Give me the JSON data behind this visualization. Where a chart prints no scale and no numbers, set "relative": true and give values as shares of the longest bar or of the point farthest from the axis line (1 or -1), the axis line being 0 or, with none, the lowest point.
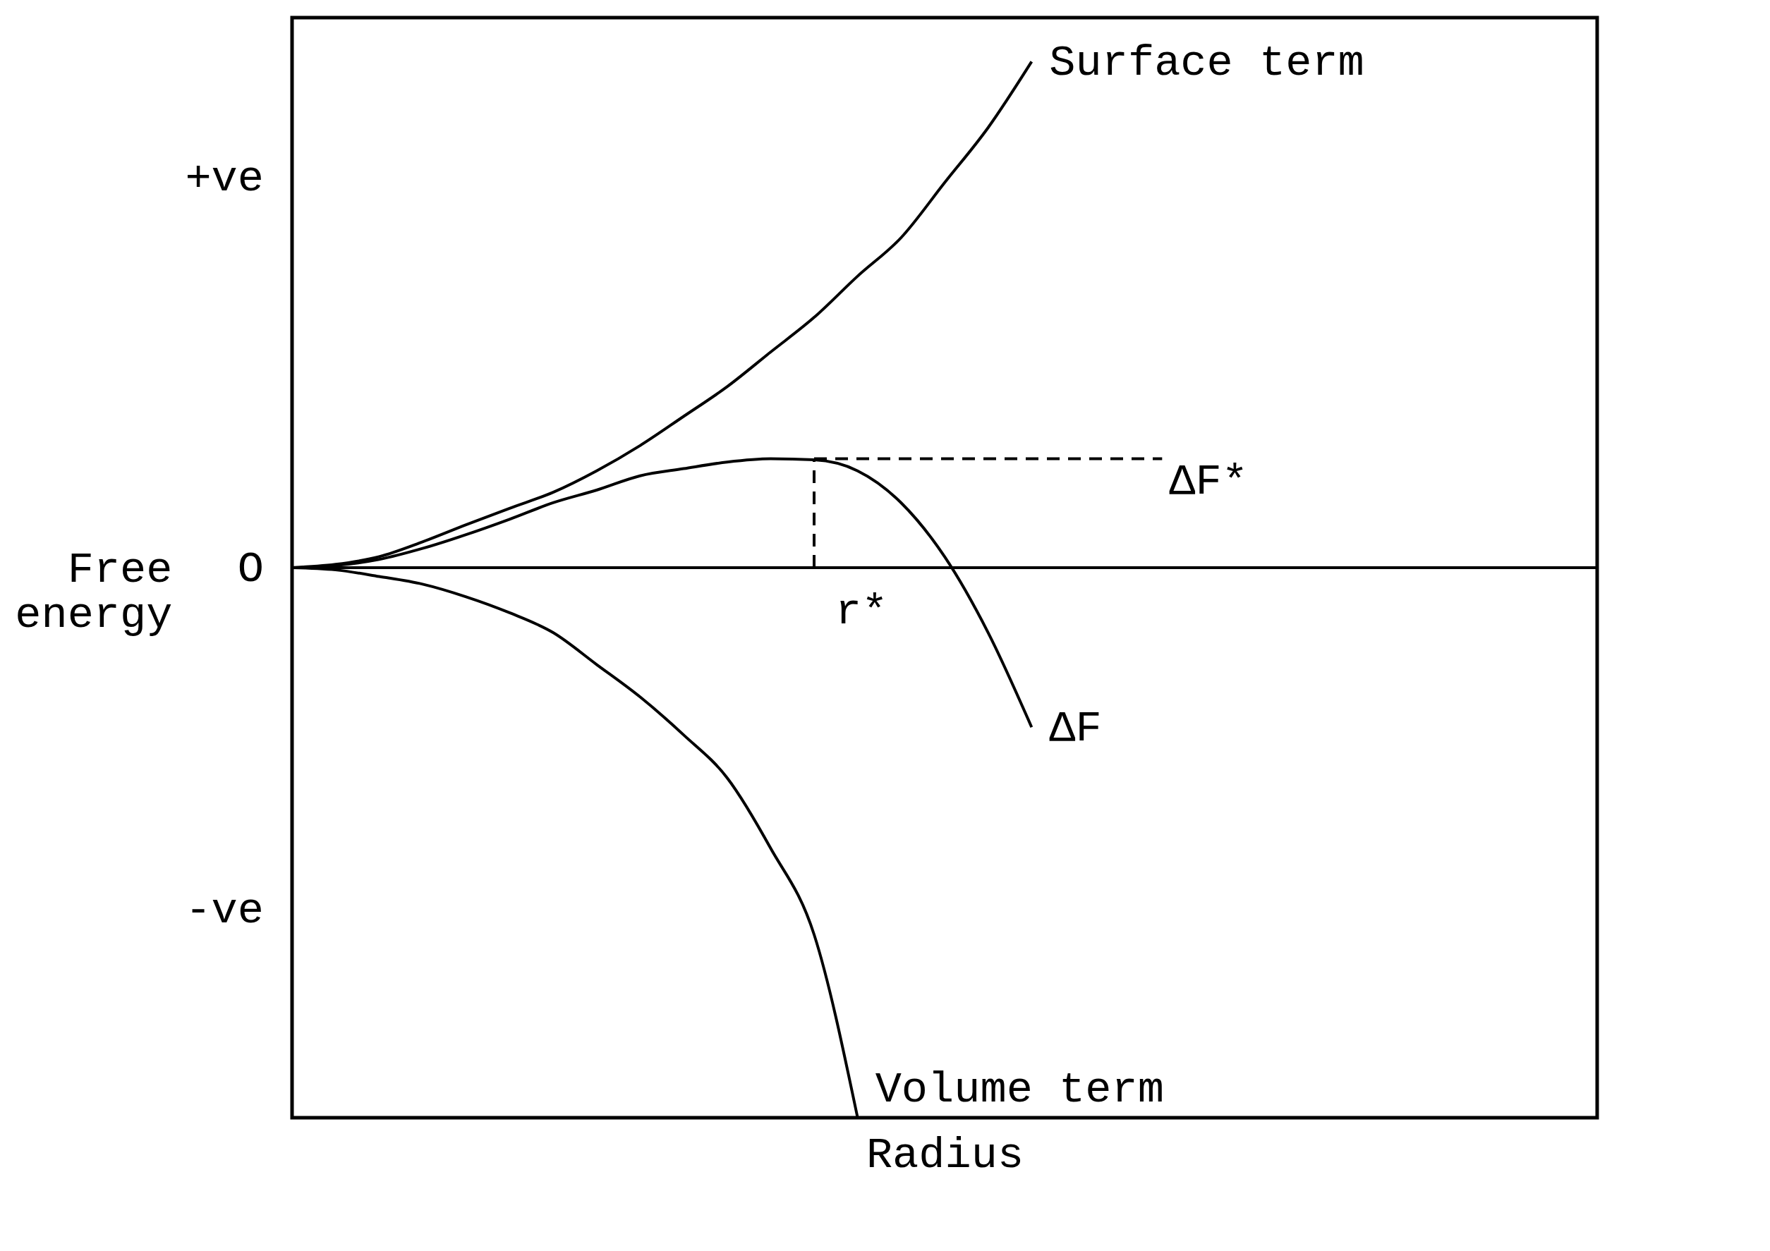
{
  "chart_data": {
    "type": "line",
    "relative": true,
    "xlabel": "Radius",
    "ylabel": "Free energy",
    "categories": [
      null,
      null,
      null,
      null,
      null,
      null,
      null,
      null,
      null,
      null,
      null,
      null,
      null,
      null,
      null,
      null,
      null,
      null,
      null,
      null,
      null,
      null,
      null,
      null,
      null,
      null,
      null,
      null,
      null,
      null,
      null
    ],
    "tick_labels": false,
    "grid": false,
    "marker": "none",
    "series": [
      {
        "name": "Surface term",
        "color": "#000000",
        "line_style": "solid",
        "values": [
          0,
          0.006,
          0.02,
          0.047,
          0.078,
          0.108,
          0.137,
          0.176,
          0.222,
          0.275,
          0.329,
          0.392,
          0.455,
          0.53,
          0.6,
          0.7,
          0.8,
          0.92,
          null,
          null,
          null,
          null,
          null,
          null,
          null,
          null,
          null,
          null,
          null,
          null,
          null
        ]
      },
      {
        "name": "ΔF",
        "color": "#000000",
        "line_style": "solid",
        "values": [
          0,
          0.004,
          0.015,
          0.035,
          0.06,
          0.088,
          0.118,
          0.141,
          0.167,
          0.18,
          0.192,
          0.198,
          0.196,
          0.176,
          0.118,
          0.02,
          -0.118,
          -0.29,
          null,
          null,
          null,
          null,
          null,
          null,
          null,
          null,
          null,
          null,
          null,
          null,
          null
        ]
      },
      {
        "name": "Volume term",
        "color": "#000000",
        "line_style": "solid",
        "values": [
          0,
          -0.004,
          -0.016,
          -0.03,
          -0.053,
          -0.082,
          -0.118,
          -0.176,
          -0.235,
          -0.304,
          -0.382,
          -0.51,
          -0.667,
          -1,
          null,
          null,
          null,
          null,
          null,
          null,
          null,
          null,
          null,
          null,
          null,
          null,
          null,
          null,
          null,
          null,
          null
        ]
      },
      {
        "color": "#000000",
        "line_style": "dashed",
        "values": [
          null,
          null,
          null,
          null,
          null,
          null,
          null,
          null,
          null,
          null,
          null,
          null,
          0.198,
          0.198,
          0.198,
          0.198,
          0.198,
          0.198,
          0.198,
          0.198,
          0.198,
          null,
          null,
          null,
          null,
          null,
          null,
          null,
          null,
          null,
          null
        ]
      }
    ],
    "annotations": [
      "+ve",
      "O",
      "-ve",
      "ΔF*",
      "r*"
    ]
  }
}
